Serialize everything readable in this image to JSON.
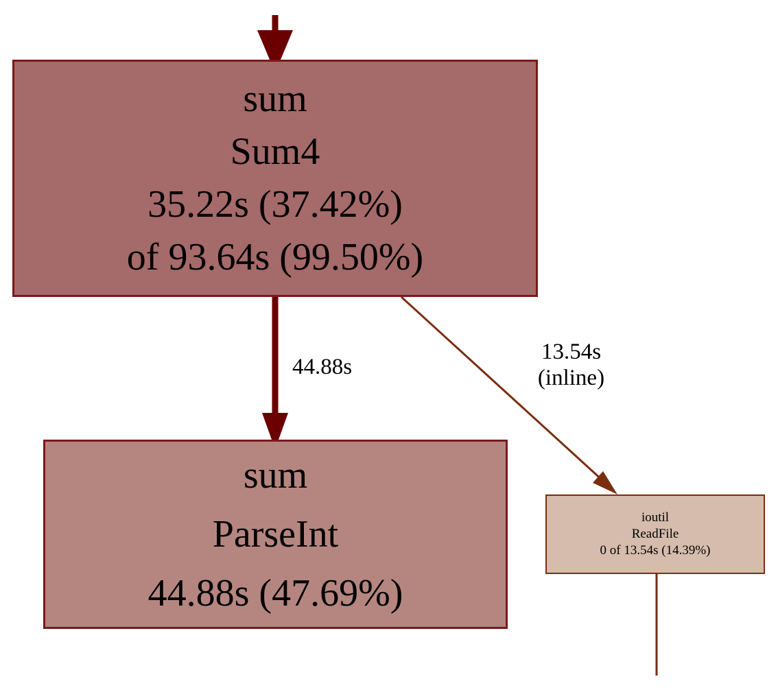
{
  "colors": {
    "sum4_fill": "#a56a6a",
    "sum4_border": "#7a1a1a",
    "parseint_fill": "#b58680",
    "parseint_border": "#7a1a1a",
    "readfile_fill": "#d5bcad",
    "readfile_border": "#7a2e10",
    "edge_heavy": "#6b0000",
    "edge_light": "#7a2e10"
  },
  "nodes": {
    "sum4": {
      "package": "sum",
      "func": "Sum4",
      "flat": "35.22s (37.42%)",
      "cum": "of 93.64s (99.50%)"
    },
    "parseint": {
      "package": "sum",
      "func": "ParseInt",
      "flat": "44.88s (47.69%)"
    },
    "readfile": {
      "package": "ioutil",
      "func": "ReadFile",
      "cum": "0 of 13.54s (14.39%)"
    }
  },
  "edges": {
    "sum4_to_parseint": {
      "time": "44.88s"
    },
    "sum4_to_readfile": {
      "time": "13.54s",
      "note": "(inline)"
    }
  }
}
